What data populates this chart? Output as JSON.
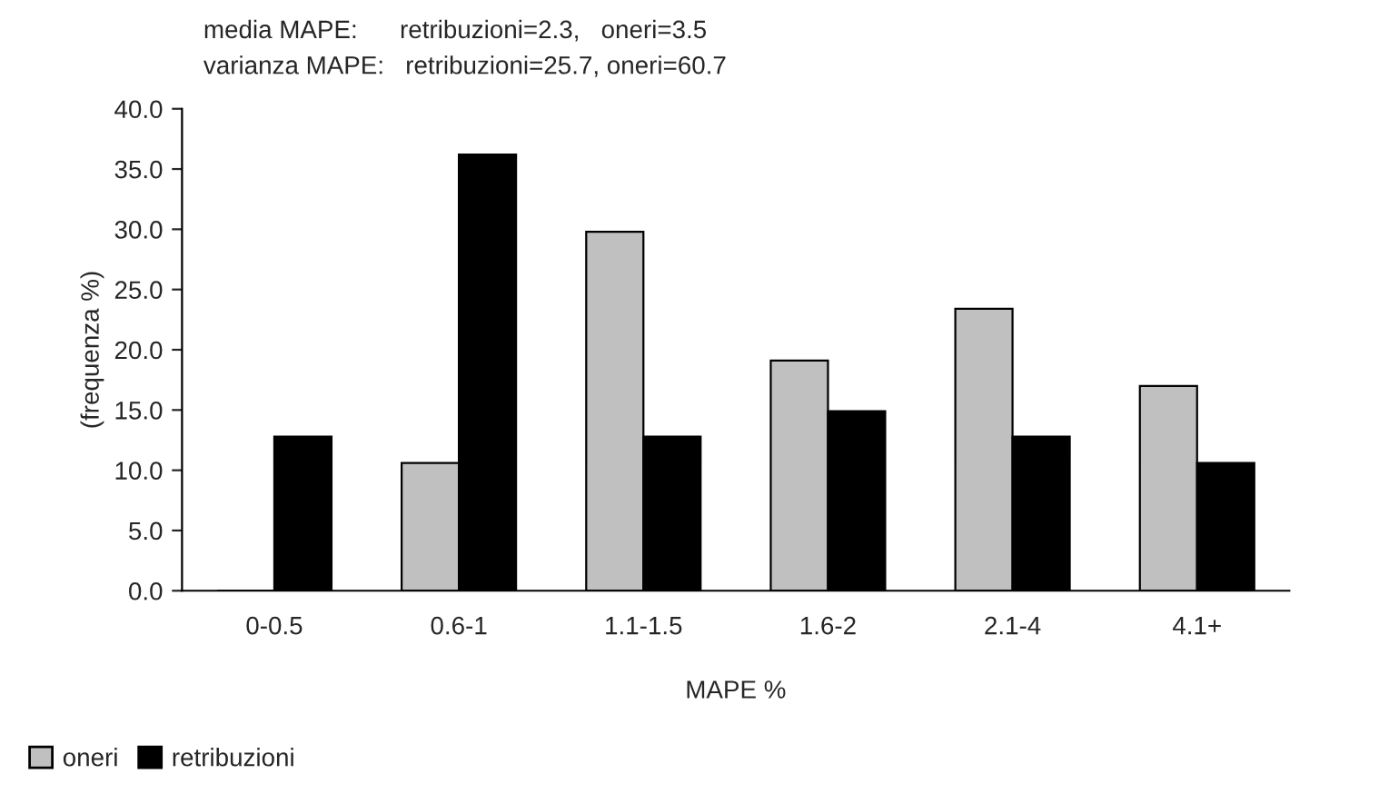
{
  "chart_data": {
    "type": "bar",
    "annotations": [
      "media MAPE:      retribuzioni=2.3,   oneri=3.5",
      "varianza MAPE:   retribuzioni=25.7, oneri=60.7"
    ],
    "xlabel": "MAPE %",
    "ylabel": "(frequenza %)",
    "categories": [
      "0-0.5",
      "0.6-1",
      "1.1-1.5",
      "1.6-2",
      "2.1-4",
      "4.1+"
    ],
    "series": [
      {
        "name": "oneri",
        "color": "#c0c0c0",
        "values": [
          0,
          10.6,
          29.8,
          19.1,
          23.4,
          17.0
        ]
      },
      {
        "name": "retribuzioni",
        "color": "#000000",
        "values": [
          12.8,
          36.2,
          12.8,
          14.9,
          12.8,
          10.6
        ]
      }
    ],
    "ylim": [
      0,
      40
    ],
    "yticks": [
      {
        "value": 0,
        "label": "0.0"
      },
      {
        "value": 5,
        "label": "5.0"
      },
      {
        "value": 10,
        "label": "10.0"
      },
      {
        "value": 15,
        "label": "15.0"
      },
      {
        "value": 20,
        "label": "20.0"
      },
      {
        "value": 25,
        "label": "25.0"
      },
      {
        "value": 30,
        "label": "30.0"
      },
      {
        "value": 35,
        "label": "35.0"
      },
      {
        "value": 40,
        "label": "40.0"
      }
    ],
    "grid": false,
    "legend": "bottom left"
  }
}
